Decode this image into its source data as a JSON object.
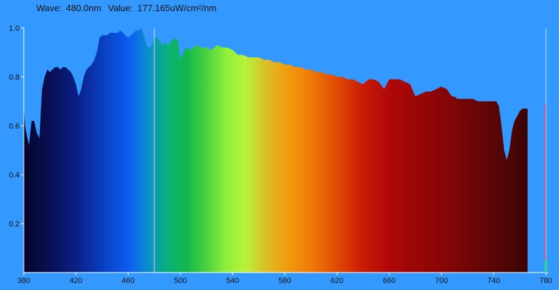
{
  "header": {
    "wave_label": "Wave:",
    "wave_value": "480.0nm",
    "value_label": "Value:",
    "value_value": "177.165uW/cm²/nm"
  },
  "colors": {
    "background": "#3399ff",
    "cursor_line": "#c8c8c8",
    "marker_line": "#ff3b6b"
  },
  "chart_data": {
    "type": "area",
    "title": "",
    "xlabel": "",
    "ylabel": "",
    "xlim": [
      380,
      782
    ],
    "ylim": [
      0,
      1.0
    ],
    "x_ticks": [
      380,
      420,
      460,
      500,
      540,
      580,
      620,
      660,
      700,
      740,
      780
    ],
    "y_ticks": [
      0.2,
      0.4,
      0.6,
      0.8,
      1.0
    ],
    "y_tick_labels": [
      "0.2",
      "0.4",
      "0.6",
      "0.8",
      "1.0"
    ],
    "cursor_wavelength": 480,
    "marker_wavelength": 780,
    "series": [
      {
        "x": [
          380,
          381,
          382,
          384,
          386,
          388,
          390,
          392,
          394,
          396,
          398,
          400,
          402,
          404,
          406,
          408,
          410,
          412,
          414,
          416,
          418,
          420,
          422,
          424,
          426,
          428,
          430,
          432,
          434,
          436,
          438,
          440,
          442,
          444,
          446,
          448,
          450,
          452,
          454,
          456,
          458,
          460,
          462,
          464,
          466,
          468,
          470,
          472,
          474,
          476,
          478,
          480,
          482,
          484,
          486,
          488,
          490,
          492,
          494,
          496,
          498,
          500,
          504,
          508,
          512,
          516,
          520,
          524,
          528,
          532,
          536,
          540,
          544,
          548,
          552,
          556,
          560,
          564,
          568,
          572,
          576,
          580,
          584,
          588,
          592,
          596,
          600,
          604,
          608,
          612,
          616,
          620,
          624,
          628,
          632,
          636,
          640,
          644,
          648,
          652,
          656,
          660,
          664,
          668,
          672,
          676,
          680,
          684,
          688,
          690,
          692,
          696,
          700,
          704,
          708,
          710,
          712,
          716,
          720,
          724,
          728,
          730,
          732,
          734,
          736,
          738,
          740,
          742,
          744,
          746,
          748,
          750,
          752,
          754,
          756,
          758,
          760,
          762,
          764,
          766
        ],
        "y": [
          0.68,
          0.6,
          0.57,
          0.52,
          0.62,
          0.62,
          0.57,
          0.55,
          0.75,
          0.8,
          0.83,
          0.82,
          0.83,
          0.84,
          0.84,
          0.83,
          0.84,
          0.84,
          0.83,
          0.82,
          0.8,
          0.77,
          0.72,
          0.75,
          0.8,
          0.83,
          0.84,
          0.85,
          0.87,
          0.9,
          0.96,
          0.97,
          0.97,
          0.97,
          0.98,
          0.98,
          0.98,
          0.98,
          0.99,
          0.98,
          0.97,
          0.96,
          0.97,
          0.98,
          0.99,
          0.99,
          1.0,
          0.97,
          0.93,
          0.92,
          0.93,
          0.96,
          0.96,
          0.95,
          0.93,
          0.94,
          0.93,
          0.94,
          0.95,
          0.96,
          0.95,
          0.87,
          0.92,
          0.91,
          0.93,
          0.92,
          0.92,
          0.91,
          0.93,
          0.92,
          0.92,
          0.91,
          0.89,
          0.89,
          0.88,
          0.88,
          0.88,
          0.87,
          0.87,
          0.86,
          0.86,
          0.85,
          0.85,
          0.84,
          0.84,
          0.83,
          0.83,
          0.82,
          0.82,
          0.81,
          0.81,
          0.8,
          0.8,
          0.79,
          0.79,
          0.78,
          0.77,
          0.79,
          0.79,
          0.78,
          0.75,
          0.79,
          0.79,
          0.79,
          0.78,
          0.77,
          0.72,
          0.73,
          0.74,
          0.74,
          0.74,
          0.75,
          0.76,
          0.75,
          0.72,
          0.72,
          0.71,
          0.71,
          0.71,
          0.71,
          0.7,
          0.7,
          0.7,
          0.7,
          0.7,
          0.7,
          0.7,
          0.7,
          0.68,
          0.6,
          0.5,
          0.46,
          0.5,
          0.58,
          0.62,
          0.64,
          0.66,
          0.67,
          0.67,
          0.67
        ]
      }
    ]
  }
}
